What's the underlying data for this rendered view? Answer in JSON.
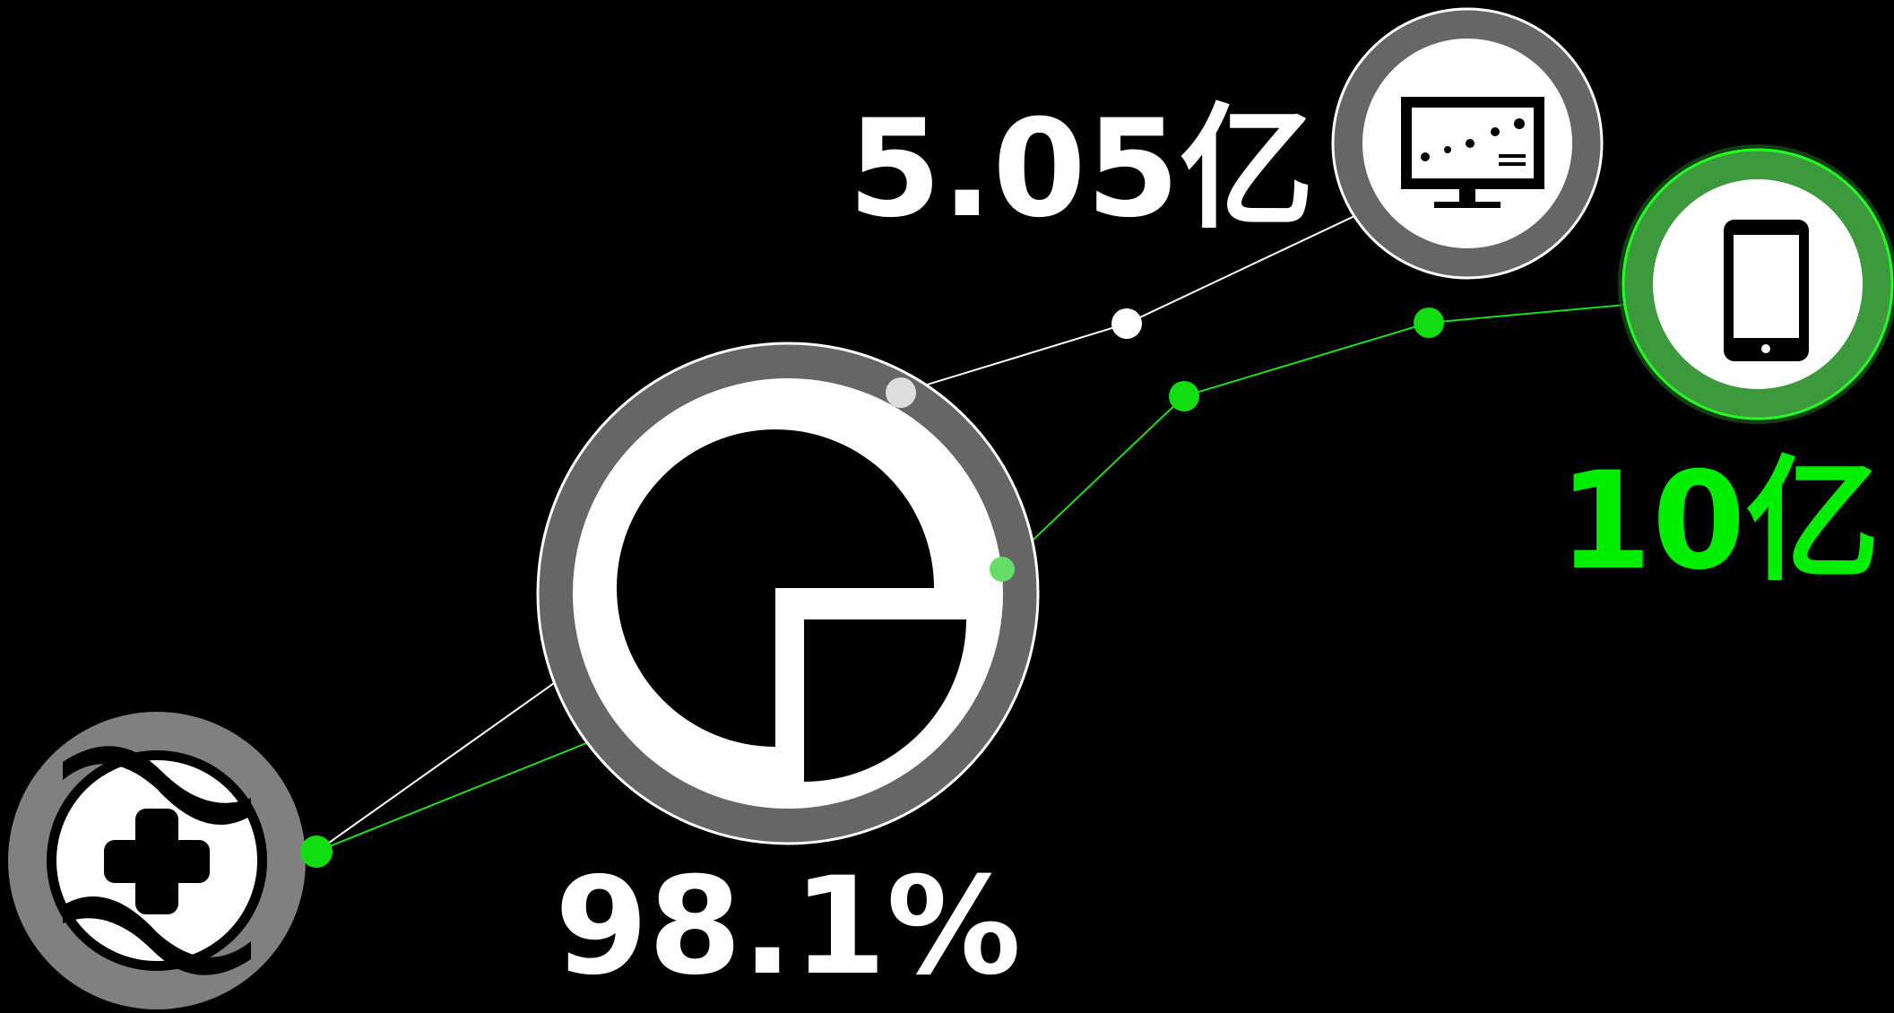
{
  "metrics": {
    "desktop": {
      "label": "5.05亿"
    },
    "mobile": {
      "label": "10亿"
    },
    "share": {
      "label": "98.1%"
    }
  }
}
